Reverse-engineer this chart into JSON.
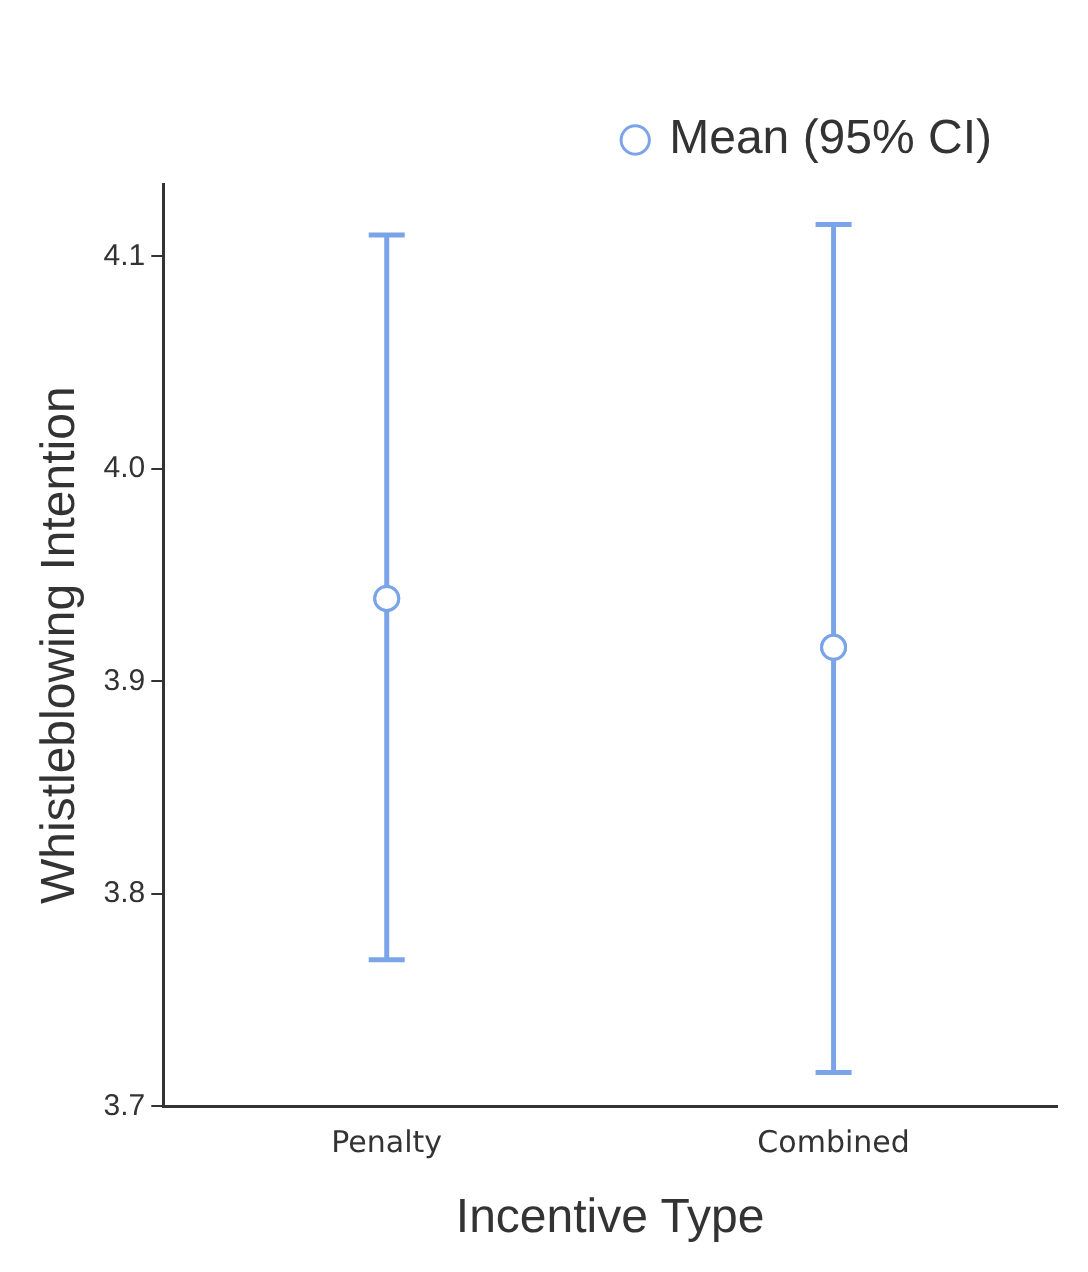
{
  "chart_data": {
    "type": "scatter",
    "xlabel": "Incentive Type",
    "ylabel": "Whistleblowing Intention",
    "categories": [
      "Penalty",
      "Combined"
    ],
    "series": [
      {
        "name": "Mean (95% CI)",
        "color": "#7ba4e8",
        "values": [
          3.939,
          3.916
        ],
        "errors": [
          [
            3.769,
            4.11
          ],
          [
            3.716,
            4.115
          ]
        ]
      }
    ],
    "ylim": [
      3.7,
      4.134
    ],
    "yticks": [
      3.7,
      3.8,
      3.9,
      {
        "value": 4,
        "label": "4.0"
      },
      4.1
    ],
    "grid": false,
    "legend": "top",
    "marker": "circle"
  }
}
